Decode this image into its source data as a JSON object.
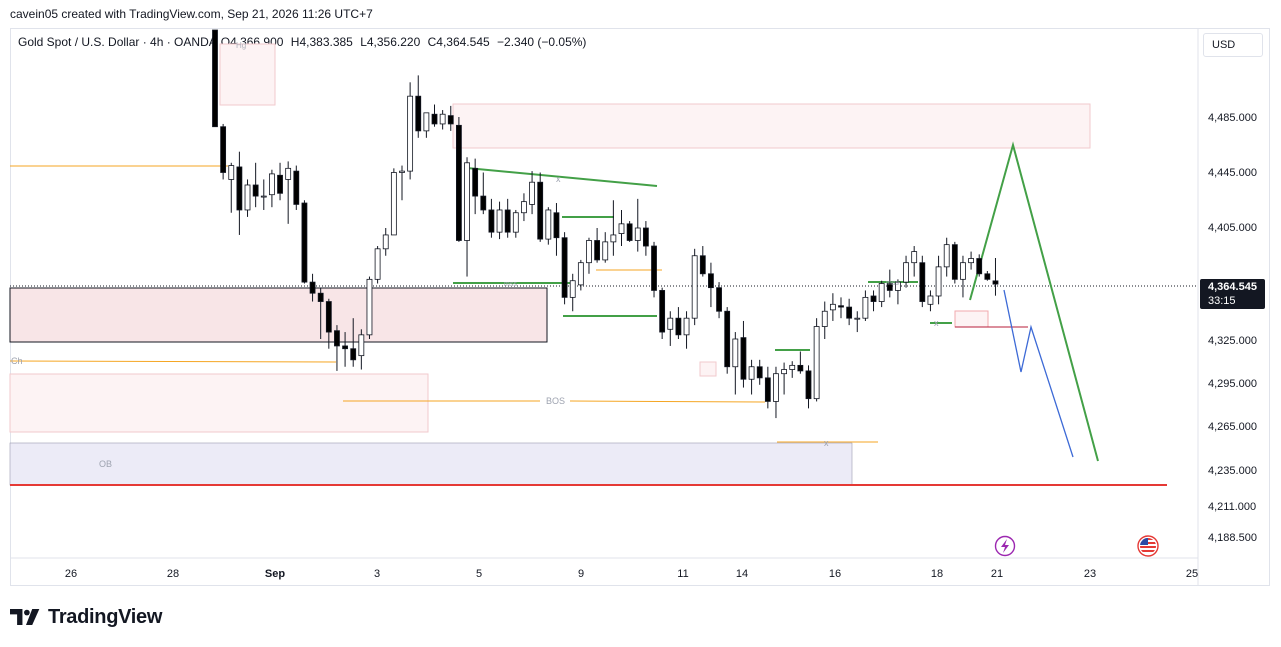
{
  "header": {
    "caption": "cavein05 created with TradingView.com, Sep 21, 2026 11:26 UTC+7"
  },
  "legend": {
    "symbol": "Gold Spot / U.S. Dollar · 4h · OANDA",
    "open": "O4,366.900",
    "high": "H4,383.385",
    "low": "L4,356.220",
    "close": "C4,364.545",
    "change": "−2.340 (−0.05%)"
  },
  "price_axis": {
    "currency": "USD",
    "last_price": "4,364.545",
    "countdown": "33:15"
  },
  "brand": {
    "name": "TradingView"
  },
  "colors": {
    "up_candle": "#ffffff",
    "down_candle": "#000000",
    "zone_red": "#f8e5e7",
    "zone_blue": "#ecebf7",
    "projection_green": "#43a047",
    "projection_blue": "#3d6ad6",
    "support_red": "#e53935",
    "level_orange": "#f5a623"
  },
  "chart_data": {
    "type": "candlestick",
    "title": "Gold Spot / U.S. Dollar · 4h · OANDA",
    "y_axis": {
      "ticks": [
        "4,485.000",
        "4,445.000",
        "4,405.000",
        "4,325.000",
        "4,295.000",
        "4,265.000",
        "4,235.000",
        "4,211.000",
        "4,188.500"
      ],
      "range": [
        4175,
        4525
      ]
    },
    "x_axis": {
      "ticks": [
        "26",
        "28",
        "Sep",
        "3",
        "5",
        "9",
        "11",
        "14",
        "16",
        "18",
        "21",
        "23",
        "25"
      ]
    },
    "candles": [
      {
        "o": 4560,
        "h": 4570,
        "l": 4478,
        "c": 4478
      },
      {
        "o": 4478,
        "h": 4480,
        "l": 4440,
        "c": 4445
      },
      {
        "o": 4440,
        "h": 4452,
        "l": 4416,
        "c": 4450
      },
      {
        "o": 4449,
        "h": 4460,
        "l": 4400,
        "c": 4418
      },
      {
        "o": 4418,
        "h": 4440,
        "l": 4413,
        "c": 4436
      },
      {
        "o": 4436,
        "h": 4452,
        "l": 4420,
        "c": 4428
      },
      {
        "o": 4428,
        "h": 4440,
        "l": 4418,
        "c": 4428
      },
      {
        "o": 4429,
        "h": 4447,
        "l": 4420,
        "c": 4444
      },
      {
        "o": 4443,
        "h": 4452,
        "l": 4425,
        "c": 4430
      },
      {
        "o": 4440,
        "h": 4453,
        "l": 4408,
        "c": 4448
      },
      {
        "o": 4446,
        "h": 4450,
        "l": 4418,
        "c": 4422
      },
      {
        "o": 4423,
        "h": 4425,
        "l": 4365,
        "c": 4366
      },
      {
        "o": 4366,
        "h": 4372,
        "l": 4352,
        "c": 4358
      },
      {
        "o": 4358,
        "h": 4362,
        "l": 4325,
        "c": 4352
      },
      {
        "o": 4352,
        "h": 4354,
        "l": 4318,
        "c": 4330
      },
      {
        "o": 4331,
        "h": 4335,
        "l": 4302,
        "c": 4320
      },
      {
        "o": 4320,
        "h": 4330,
        "l": 4305,
        "c": 4318
      },
      {
        "o": 4318,
        "h": 4340,
        "l": 4305,
        "c": 4310
      },
      {
        "o": 4313,
        "h": 4332,
        "l": 4303,
        "c": 4328
      },
      {
        "o": 4328,
        "h": 4370,
        "l": 4325,
        "c": 4368
      },
      {
        "o": 4368,
        "h": 4392,
        "l": 4365,
        "c": 4390
      },
      {
        "o": 4390,
        "h": 4405,
        "l": 4385,
        "c": 4400
      },
      {
        "o": 4400,
        "h": 4448,
        "l": 4400,
        "c": 4445
      },
      {
        "o": 4445,
        "h": 4450,
        "l": 4425,
        "c": 4446
      },
      {
        "o": 4446,
        "h": 4510,
        "l": 4440,
        "c": 4500
      },
      {
        "o": 4500,
        "h": 4515,
        "l": 4470,
        "c": 4475
      },
      {
        "o": 4475,
        "h": 4488,
        "l": 4470,
        "c": 4488
      },
      {
        "o": 4487,
        "h": 4494,
        "l": 4478,
        "c": 4480
      },
      {
        "o": 4480,
        "h": 4490,
        "l": 4476,
        "c": 4487
      },
      {
        "o": 4486,
        "h": 4493,
        "l": 4475,
        "c": 4480
      },
      {
        "o": 4479,
        "h": 4485,
        "l": 4395,
        "c": 4396
      },
      {
        "o": 4396,
        "h": 4456,
        "l": 4370,
        "c": 4452
      },
      {
        "o": 4448,
        "h": 4455,
        "l": 4415,
        "c": 4428
      },
      {
        "o": 4428,
        "h": 4445,
        "l": 4415,
        "c": 4418
      },
      {
        "o": 4418,
        "h": 4426,
        "l": 4398,
        "c": 4402
      },
      {
        "o": 4402,
        "h": 4424,
        "l": 4397,
        "c": 4418
      },
      {
        "o": 4418,
        "h": 4426,
        "l": 4398,
        "c": 4402
      },
      {
        "o": 4402,
        "h": 4418,
        "l": 4398,
        "c": 4416
      },
      {
        "o": 4416,
        "h": 4430,
        "l": 4410,
        "c": 4424
      },
      {
        "o": 4422,
        "h": 4446,
        "l": 4415,
        "c": 4438
      },
      {
        "o": 4438,
        "h": 4445,
        "l": 4395,
        "c": 4397
      },
      {
        "o": 4397,
        "h": 4420,
        "l": 4393,
        "c": 4418
      },
      {
        "o": 4416,
        "h": 4423,
        "l": 4385,
        "c": 4398
      },
      {
        "o": 4398,
        "h": 4402,
        "l": 4350,
        "c": 4355
      },
      {
        "o": 4355,
        "h": 4372,
        "l": 4345,
        "c": 4367
      },
      {
        "o": 4364,
        "h": 4382,
        "l": 4360,
        "c": 4380
      },
      {
        "o": 4380,
        "h": 4398,
        "l": 4372,
        "c": 4396
      },
      {
        "o": 4396,
        "h": 4405,
        "l": 4380,
        "c": 4382
      },
      {
        "o": 4382,
        "h": 4402,
        "l": 4380,
        "c": 4395
      },
      {
        "o": 4395,
        "h": 4425,
        "l": 4385,
        "c": 4400
      },
      {
        "o": 4401,
        "h": 4418,
        "l": 4392,
        "c": 4408
      },
      {
        "o": 4408,
        "h": 4410,
        "l": 4395,
        "c": 4396
      },
      {
        "o": 4396,
        "h": 4426,
        "l": 4388,
        "c": 4405
      },
      {
        "o": 4405,
        "h": 4410,
        "l": 4385,
        "c": 4392
      },
      {
        "o": 4392,
        "h": 4395,
        "l": 4355,
        "c": 4360
      },
      {
        "o": 4360,
        "h": 4362,
        "l": 4325,
        "c": 4330
      },
      {
        "o": 4332,
        "h": 4345,
        "l": 4320,
        "c": 4340
      },
      {
        "o": 4340,
        "h": 4348,
        "l": 4325,
        "c": 4328
      },
      {
        "o": 4328,
        "h": 4345,
        "l": 4318,
        "c": 4340
      },
      {
        "o": 4340,
        "h": 4390,
        "l": 4335,
        "c": 4385
      },
      {
        "o": 4385,
        "h": 4392,
        "l": 4370,
        "c": 4372
      },
      {
        "o": 4372,
        "h": 4380,
        "l": 4348,
        "c": 4362
      },
      {
        "o": 4362,
        "h": 4366,
        "l": 4340,
        "c": 4345
      },
      {
        "o": 4345,
        "h": 4348,
        "l": 4300,
        "c": 4305
      },
      {
        "o": 4305,
        "h": 4330,
        "l": 4285,
        "c": 4325
      },
      {
        "o": 4326,
        "h": 4338,
        "l": 4290,
        "c": 4296
      },
      {
        "o": 4296,
        "h": 4310,
        "l": 4285,
        "c": 4305
      },
      {
        "o": 4305,
        "h": 4310,
        "l": 4292,
        "c": 4297
      },
      {
        "o": 4297,
        "h": 4305,
        "l": 4275,
        "c": 4280
      },
      {
        "o": 4280,
        "h": 4305,
        "l": 4268,
        "c": 4300
      },
      {
        "o": 4300,
        "h": 4308,
        "l": 4285,
        "c": 4303
      },
      {
        "o": 4303,
        "h": 4309,
        "l": 4297,
        "c": 4306
      },
      {
        "o": 4306,
        "h": 4316,
        "l": 4300,
        "c": 4302
      },
      {
        "o": 4302,
        "h": 4306,
        "l": 4275,
        "c": 4282
      },
      {
        "o": 4282,
        "h": 4340,
        "l": 4280,
        "c": 4334
      },
      {
        "o": 4334,
        "h": 4352,
        "l": 4325,
        "c": 4345
      },
      {
        "o": 4346,
        "h": 4358,
        "l": 4338,
        "c": 4350
      },
      {
        "o": 4349,
        "h": 4355,
        "l": 4340,
        "c": 4348
      },
      {
        "o": 4348,
        "h": 4354,
        "l": 4335,
        "c": 4340
      },
      {
        "o": 4340,
        "h": 4345,
        "l": 4330,
        "c": 4340
      },
      {
        "o": 4340,
        "h": 4360,
        "l": 4338,
        "c": 4355
      },
      {
        "o": 4356,
        "h": 4360,
        "l": 4345,
        "c": 4352
      },
      {
        "o": 4352,
        "h": 4367,
        "l": 4348,
        "c": 4365
      },
      {
        "o": 4365,
        "h": 4375,
        "l": 4355,
        "c": 4360
      },
      {
        "o": 4360,
        "h": 4368,
        "l": 4350,
        "c": 4366
      },
      {
        "o": 4366,
        "h": 4385,
        "l": 4362,
        "c": 4380
      },
      {
        "o": 4380,
        "h": 4392,
        "l": 4370,
        "c": 4388
      },
      {
        "o": 4380,
        "h": 4385,
        "l": 4348,
        "c": 4352
      },
      {
        "o": 4350,
        "h": 4360,
        "l": 4345,
        "c": 4356
      },
      {
        "o": 4356,
        "h": 4385,
        "l": 4350,
        "c": 4377
      },
      {
        "o": 4377,
        "h": 4398,
        "l": 4370,
        "c": 4393
      },
      {
        "o": 4393,
        "h": 4395,
        "l": 4365,
        "c": 4368
      },
      {
        "o": 4368,
        "h": 4385,
        "l": 4355,
        "c": 4380
      },
      {
        "o": 4380,
        "h": 4388,
        "l": 4375,
        "c": 4383
      },
      {
        "o": 4383,
        "h": 4386,
        "l": 4370,
        "c": 4372
      },
      {
        "o": 4372,
        "h": 4374,
        "l": 4367,
        "c": 4368
      },
      {
        "o": 4366.9,
        "h": 4383.385,
        "l": 4356.22,
        "c": 4364.545
      }
    ],
    "annotations": {
      "bos_label": "BOS",
      "ob_label": "OB",
      "ch_label": "Ch",
      "mss_label": "mss",
      "x_label": "x",
      "hg_label": "Hg"
    },
    "grid": false,
    "last_price": 4364.545
  }
}
